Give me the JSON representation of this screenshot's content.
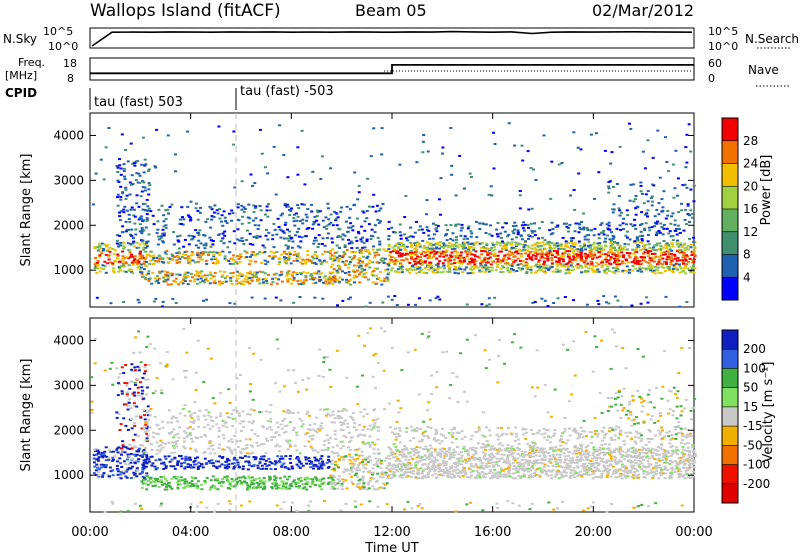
{
  "header": {
    "station": "Wallops Island (fitACF)",
    "beam": "Beam 05",
    "date": "02/Mar/2012"
  },
  "chart_data": [
    {
      "type": "line",
      "panel": "sky-noise",
      "label_left": "N.Sky",
      "label_right": "N.Search",
      "left_ticks": [
        "10^5",
        "10^0"
      ],
      "right_ticks": [
        "10^5",
        "10^0"
      ],
      "sky_noise_log": [
        0,
        4.3,
        4.35,
        4.3,
        4.4,
        4.35,
        4.3,
        4.4,
        4.35,
        4.4,
        4.3,
        4.35,
        4.3,
        4.4,
        4.35,
        4.3,
        4.4,
        4.35,
        4.5,
        4.4,
        4.3,
        4.4,
        3.9,
        4.3,
        4.4,
        4.35,
        4.4,
        4.45,
        4.4,
        4.35,
        4.3
      ]
    },
    {
      "type": "line",
      "panel": "frequency",
      "label_left": "Freq. [MHz]",
      "label_right": "Nave",
      "left_ticks": [
        "18",
        "8"
      ],
      "right_ticks": [
        "60",
        "0"
      ],
      "frequency_mhz": [
        {
          "from": "00:00",
          "to": "12:00",
          "value": 10.6
        },
        {
          "from": "12:00",
          "to": "24:00",
          "value": 15.3
        }
      ]
    },
    {
      "type": "table",
      "panel": "cpid",
      "label": "CPID",
      "segments": [
        {
          "start": "00:00",
          "text": "tau (fast) 503"
        },
        {
          "start": "06:00",
          "text": "tau (fast) -503"
        }
      ]
    },
    {
      "type": "heatmap",
      "panel": "power",
      "ylabel": "Slant Range [km]",
      "xlabel": "",
      "y_ticks": [
        1000,
        2000,
        3000,
        4000
      ],
      "ylim": [
        180,
        4500
      ],
      "colorbar_label": "Power [dB]",
      "colorbar_ticks": [
        "4",
        "8",
        "12",
        "16",
        "20",
        "24",
        "28"
      ],
      "colors": [
        "#0000ff",
        "#2060b0",
        "#409070",
        "#60b060",
        "#a0d040",
        "#f0c000",
        "#f07000",
        "#f00000"
      ]
    },
    {
      "type": "heatmap",
      "panel": "velocity",
      "ylabel": "Slant Range [km]",
      "xlabel": "Time UT",
      "x_ticks": [
        "00:00",
        "04:00",
        "08:00",
        "12:00",
        "16:00",
        "20:00",
        "00:00"
      ],
      "y_ticks": [
        1000,
        2000,
        3000,
        4000
      ],
      "ylim": [
        180,
        4500
      ],
      "colorbar_label": "Velocity [m s⁻¹]",
      "colorbar_ticks": [
        "200",
        "100",
        "50",
        "15",
        "-15",
        "-50",
        "-100",
        "-200"
      ],
      "colors": [
        "#1020c0",
        "#3060e0",
        "#40b040",
        "#80e060",
        "#c8c8c8",
        "#f0b000",
        "#f07000",
        "#f01000",
        "#e00000"
      ]
    }
  ]
}
